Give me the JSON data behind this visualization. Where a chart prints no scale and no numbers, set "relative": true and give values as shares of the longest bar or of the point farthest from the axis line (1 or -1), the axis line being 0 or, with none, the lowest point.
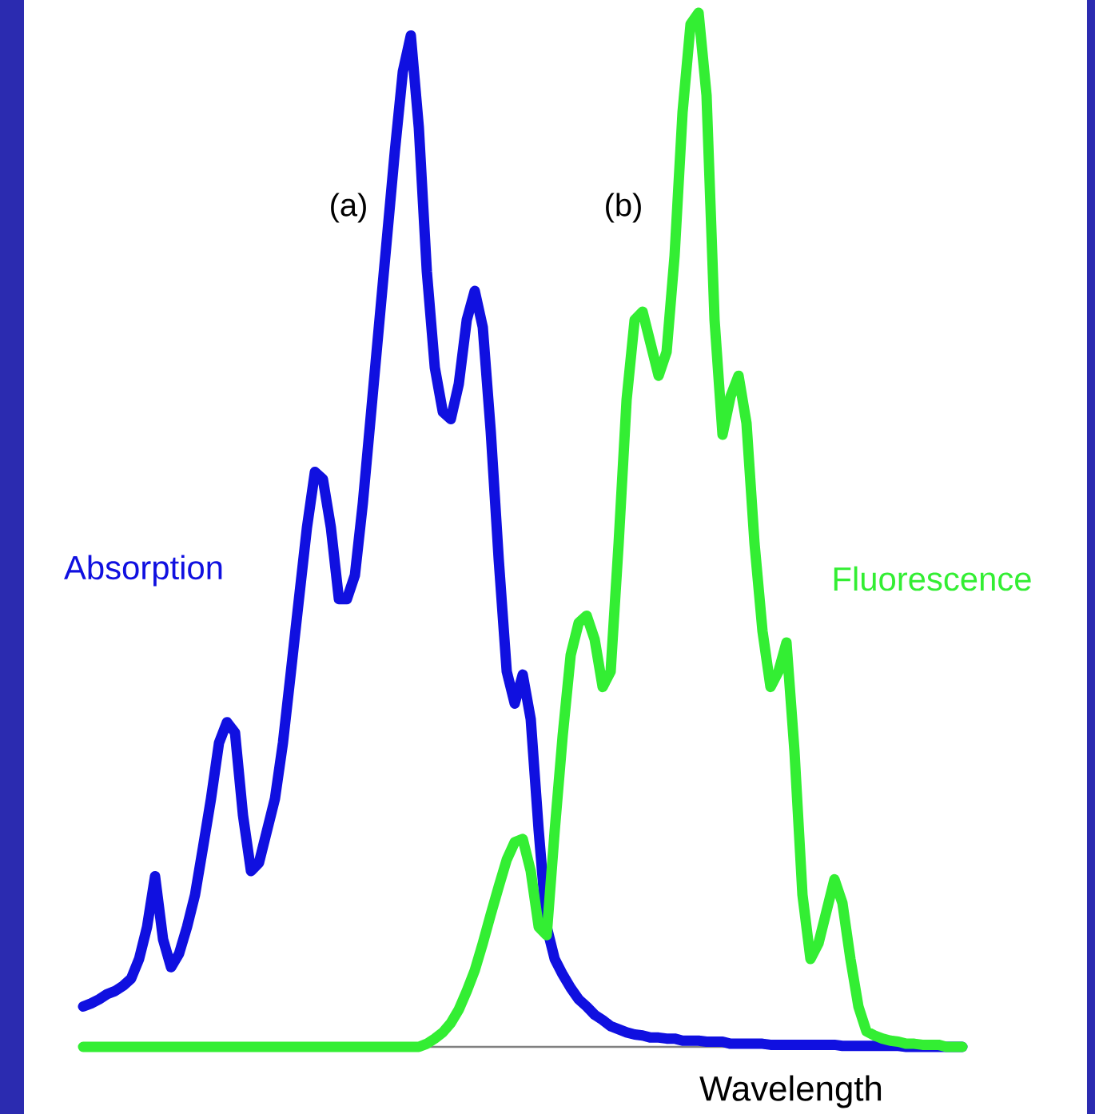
{
  "chart_data": {
    "type": "line",
    "relative": true,
    "xlabel": "Wavelength",
    "annotations": [
      "(a)",
      "(b)"
    ],
    "categories": [
      null,
      null,
      null,
      null,
      null,
      null,
      null,
      null,
      null,
      null,
      null,
      null,
      null,
      null,
      null,
      null,
      null,
      null,
      null,
      null,
      null,
      null,
      null,
      null,
      null,
      null,
      null,
      null,
      null,
      null,
      null,
      null,
      null,
      null,
      null,
      null,
      null,
      null,
      null,
      null,
      null,
      null,
      null,
      null,
      null,
      null,
      null,
      null,
      null,
      null,
      null,
      null,
      null,
      null,
      null,
      null,
      null,
      null,
      null,
      null,
      null,
      null,
      null,
      null,
      null,
      null,
      null,
      null,
      null,
      null,
      null,
      null,
      null,
      null,
      null,
      null,
      null,
      null,
      null,
      null,
      null,
      null,
      null,
      null,
      null,
      null,
      null,
      null,
      null,
      null,
      null,
      null,
      null,
      null,
      null,
      null,
      null,
      null,
      null,
      null,
      null,
      null,
      null,
      null,
      null,
      null,
      null,
      null,
      null,
      null,
      null
    ],
    "series": [
      {
        "name": "Absorption",
        "color": "#1010e0",
        "values": [
          0.039,
          0.042,
          0.046,
          0.051,
          0.054,
          0.059,
          0.066,
          0.085,
          0.116,
          0.165,
          0.104,
          0.077,
          0.09,
          0.116,
          0.147,
          0.193,
          0.24,
          0.294,
          0.314,
          0.304,
          0.224,
          0.17,
          0.178,
          0.209,
          0.24,
          0.294,
          0.363,
          0.433,
          0.502,
          0.556,
          0.549,
          0.502,
          0.433,
          0.433,
          0.456,
          0.526,
          0.611,
          0.696,
          0.781,
          0.866,
          0.943,
          0.978,
          0.889,
          0.75,
          0.657,
          0.614,
          0.607,
          0.641,
          0.703,
          0.731,
          0.696,
          0.595,
          0.471,
          0.363,
          0.332,
          0.36,
          0.317,
          0.209,
          0.116,
          0.085,
          0.07,
          0.057,
          0.046,
          0.039,
          0.031,
          0.026,
          0.02,
          0.017,
          0.014,
          0.012,
          0.011,
          0.009,
          0.009,
          0.008,
          0.008,
          0.006,
          0.006,
          0.006,
          0.005,
          0.005,
          0.005,
          0.003,
          0.003,
          0.003,
          0.003,
          0.003,
          0.002,
          0.002,
          0.002,
          0.002,
          0.002,
          0.002,
          0.002,
          0.002,
          0.002,
          0.001,
          0.001,
          0.001,
          0.001,
          0.001,
          0.001,
          0.001,
          0.001,
          0,
          0,
          0,
          0,
          0,
          0,
          0,
          0
        ]
      },
      {
        "name": "Fluorescence",
        "color": "#33ee33",
        "values": [
          0,
          0,
          0,
          0,
          0,
          0,
          0,
          0,
          0,
          0,
          0,
          0,
          0,
          0,
          0,
          0,
          0,
          0,
          0,
          0,
          0,
          0,
          0,
          0,
          0,
          0,
          0,
          0,
          0,
          0,
          0,
          0,
          0,
          0,
          0,
          0,
          0,
          0,
          0,
          0,
          0,
          0,
          0,
          0.003,
          0.008,
          0.014,
          0.023,
          0.036,
          0.054,
          0.074,
          0.1,
          0.128,
          0.155,
          0.181,
          0.198,
          0.201,
          0.17,
          0.116,
          0.108,
          0.209,
          0.301,
          0.379,
          0.41,
          0.417,
          0.394,
          0.348,
          0.363,
          0.487,
          0.626,
          0.703,
          0.711,
          0.68,
          0.649,
          0.672,
          0.765,
          0.904,
          0.989,
          1,
          0.92,
          0.703,
          0.592,
          0.629,
          0.649,
          0.603,
          0.487,
          0.402,
          0.348,
          0.363,
          0.391,
          0.286,
          0.147,
          0.085,
          0.1,
          0.131,
          0.162,
          0.139,
          0.085,
          0.039,
          0.015,
          0.011,
          0.008,
          0.006,
          0.005,
          0.003,
          0.003,
          0.002,
          0.002,
          0.002,
          0,
          0,
          0
        ]
      }
    ]
  }
}
